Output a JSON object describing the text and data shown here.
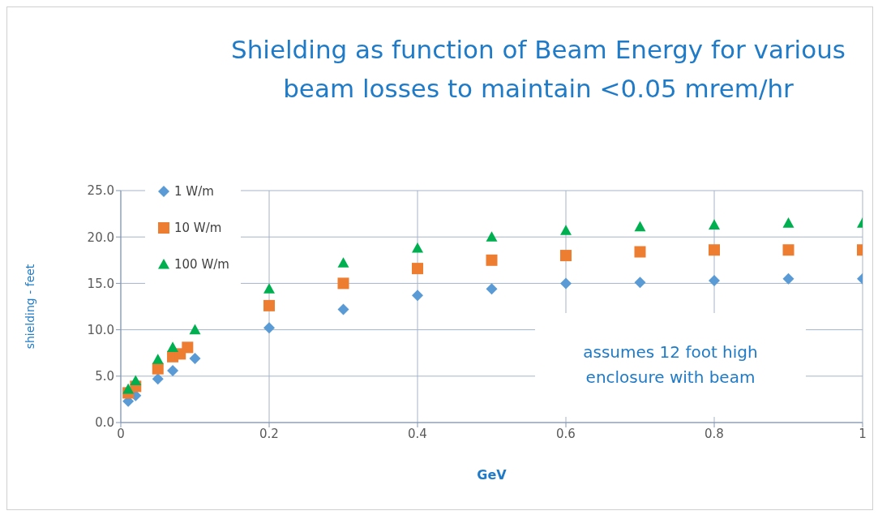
{
  "chart_data": {
    "type": "scatter",
    "title": "Shielding as function of Beam Energy for various beam losses to maintain <0.05 mrem/hr",
    "xlabel": "GeV",
    "ylabel": "shielding - feet",
    "xlim": [
      0,
      1
    ],
    "xticks": [
      {
        "value": 0,
        "label": "0"
      },
      {
        "value": 0.2,
        "label": "0.2"
      },
      {
        "value": 0.4,
        "label": "0.4"
      },
      {
        "value": 0.6,
        "label": "0.6"
      },
      {
        "value": 0.8,
        "label": "0.8"
      },
      {
        "value": 1,
        "label": "1"
      }
    ],
    "ylim": [
      0,
      25
    ],
    "yticks": [
      {
        "value": 0,
        "label": "0.0"
      },
      {
        "value": 5,
        "label": "5.0"
      },
      {
        "value": 10,
        "label": "10.0"
      },
      {
        "value": 15,
        "label": "15.0"
      },
      {
        "value": 20,
        "label": "20.0"
      },
      {
        "value": 25,
        "label": "25.0"
      }
    ],
    "grid": true,
    "legend": "top left",
    "annotations": [
      "assumes 12 foot high enclosure with beam"
    ],
    "series": [
      {
        "name": "1 W/m",
        "color": "#5b9bd5",
        "marker": "diamond",
        "x": [
          0.01,
          0.02,
          0.05,
          0.07,
          0.1,
          0.2,
          0.3,
          0.4,
          0.5,
          0.6,
          0.7,
          0.8,
          0.9,
          1
        ],
        "values": [
          2.3,
          2.9,
          4.7,
          5.6,
          6.9,
          10.2,
          12.2,
          13.7,
          14.4,
          15.0,
          15.1,
          15.3,
          15.5,
          15.5
        ]
      },
      {
        "name": "10 W/m",
        "color": "#ed7d31",
        "marker": "square",
        "x": [
          0.01,
          0.02,
          0.05,
          0.07,
          0.08,
          0.09,
          0.2,
          0.3,
          0.4,
          0.5,
          0.6,
          0.7,
          0.8,
          0.9,
          1
        ],
        "values": [
          3.2,
          3.9,
          5.8,
          7.1,
          7.4,
          8.1,
          12.6,
          15.0,
          16.6,
          17.5,
          18.0,
          18.4,
          18.6,
          18.6,
          18.6
        ]
      },
      {
        "name": "100 W/m",
        "color": "#00b050",
        "marker": "triangle",
        "x": [
          0.01,
          0.02,
          0.05,
          0.07,
          0.1,
          0.2,
          0.3,
          0.4,
          0.5,
          0.6,
          0.7,
          0.8,
          0.9,
          1
        ],
        "values": [
          3.6,
          4.5,
          6.8,
          8.1,
          10.0,
          14.4,
          17.2,
          18.8,
          20.0,
          20.7,
          21.1,
          21.3,
          21.5,
          21.5
        ]
      }
    ]
  }
}
